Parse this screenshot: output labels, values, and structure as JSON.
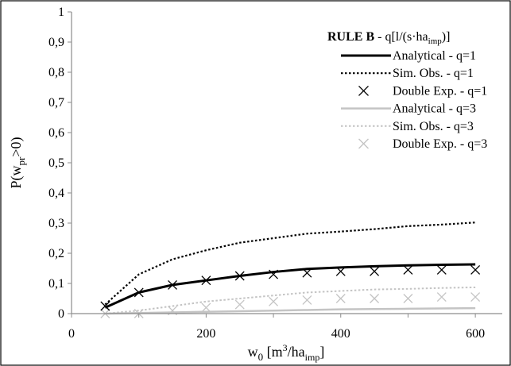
{
  "colors": {
    "q1": "#000000",
    "q3": "#c4c4c4",
    "axis": "#8c8c8c",
    "border": "#000000"
  },
  "chart_data": {
    "type": "line",
    "xlabel": {
      "main": "w",
      "sub": "0",
      "pre": " [m",
      "sup": "3",
      "mid": "/ha",
      "sub2": "imp",
      "post": "]"
    },
    "ylabel": {
      "main": "P(w",
      "sub": "pr",
      "post": ">0)"
    },
    "xlim": [
      0,
      640
    ],
    "ylim": [
      0,
      1
    ],
    "x_ticks": [
      "0",
      "200",
      "400",
      "600"
    ],
    "y_ticks": [
      "0",
      "0,1",
      "0,2",
      "0,3",
      "0,4",
      "0,5",
      "0,6",
      "0,7",
      "0,8",
      "0,9",
      "1"
    ],
    "grid": false,
    "legend": {
      "placement": "top-right",
      "title": {
        "bold": "RULE B",
        "rest": " - q[l/(s·ha",
        "sub": "imp",
        "end": ")]"
      }
    },
    "series": [
      {
        "name": "Analytical - q=1",
        "style": "solid",
        "group": "q1",
        "x": [
          50,
          100,
          150,
          200,
          250,
          300,
          350,
          400,
          450,
          500,
          550,
          600
        ],
        "y": [
          0.02,
          0.07,
          0.095,
          0.11,
          0.125,
          0.138,
          0.148,
          0.153,
          0.157,
          0.16,
          0.162,
          0.163
        ]
      },
      {
        "name": "Sim. Obs. - q=1",
        "style": "dotted",
        "group": "q1",
        "x": [
          50,
          100,
          150,
          200,
          250,
          300,
          350,
          400,
          450,
          500,
          550,
          600
        ],
        "y": [
          0.03,
          0.13,
          0.18,
          0.21,
          0.235,
          0.25,
          0.265,
          0.272,
          0.28,
          0.29,
          0.295,
          0.302
        ]
      },
      {
        "name": "Double Exp. - q=1",
        "style": "marker",
        "group": "q1",
        "x": [
          50,
          100,
          150,
          200,
          250,
          300,
          350,
          400,
          450,
          500,
          550,
          600
        ],
        "y": [
          0.025,
          0.07,
          0.095,
          0.11,
          0.125,
          0.13,
          0.135,
          0.14,
          0.14,
          0.145,
          0.145,
          0.145
        ]
      },
      {
        "name": "Analytical - q=3",
        "style": "solid",
        "group": "q3",
        "x": [
          50,
          100,
          150,
          200,
          250,
          300,
          350,
          400,
          450,
          500,
          550,
          600
        ],
        "y": [
          0.0,
          0.002,
          0.004,
          0.006,
          0.008,
          0.01,
          0.012,
          0.014,
          0.015,
          0.016,
          0.017,
          0.018
        ]
      },
      {
        "name": "Sim. Obs. - q=3",
        "style": "dotted",
        "group": "q3",
        "x": [
          50,
          100,
          150,
          200,
          250,
          300,
          350,
          400,
          450,
          500,
          550,
          600
        ],
        "y": [
          0.0,
          0.01,
          0.025,
          0.04,
          0.05,
          0.06,
          0.07,
          0.075,
          0.08,
          0.082,
          0.085,
          0.087
        ]
      },
      {
        "name": "Double Exp. - q=3",
        "style": "marker",
        "group": "q3",
        "x": [
          50,
          100,
          150,
          200,
          250,
          300,
          350,
          400,
          450,
          500,
          550,
          600
        ],
        "y": [
          0.0,
          0.0,
          0.01,
          0.02,
          0.03,
          0.04,
          0.045,
          0.05,
          0.05,
          0.05,
          0.055,
          0.055
        ]
      }
    ]
  }
}
